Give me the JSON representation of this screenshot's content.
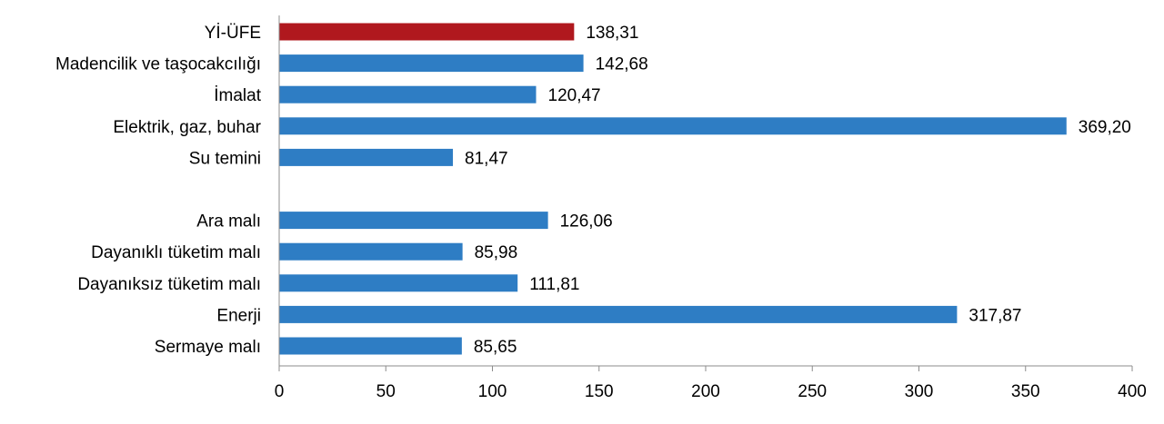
{
  "chart_data": {
    "type": "bar",
    "orientation": "horizontal",
    "categories": [
      "Yİ-ÜFE",
      "Madencilik ve taşocakcılığı",
      "İmalat",
      "Elektrik, gaz, buhar",
      "Su temini",
      "",
      "Ara malı",
      "Dayanıklı tüketim malı",
      "Dayanıksız tüketim malı",
      "Enerji",
      "Sermaye malı"
    ],
    "values": [
      138.31,
      142.68,
      120.47,
      369.2,
      81.47,
      null,
      126.06,
      85.98,
      111.81,
      317.87,
      85.65
    ],
    "value_labels": [
      "138,31",
      "142,68",
      "120,47",
      "369,20",
      "81,47",
      "",
      "126,06",
      "85,98",
      "111,81",
      "317,87",
      "85,65"
    ],
    "bar_colors": [
      "#b0181e",
      "#2e7dc4",
      "#2e7dc4",
      "#2e7dc4",
      "#2e7dc4",
      "",
      "#2e7dc4",
      "#2e7dc4",
      "#2e7dc4",
      "#2e7dc4",
      "#2e7dc4"
    ],
    "xlim": [
      0,
      400
    ],
    "xticks": [
      0,
      50,
      100,
      150,
      200,
      250,
      300,
      350,
      400
    ],
    "grid": false,
    "legend": "none",
    "title": "",
    "xlabel": "",
    "ylabel": ""
  }
}
